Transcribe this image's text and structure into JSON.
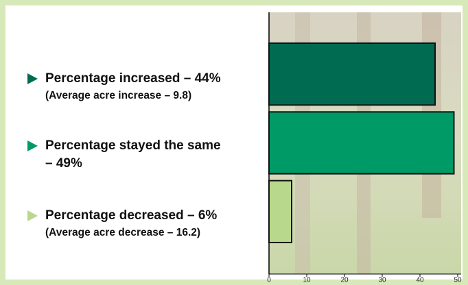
{
  "chart_data": {
    "type": "barh",
    "categories": [
      "Percentage increased – 44%",
      "Percentage stayed the same – 49%",
      "Percentage decreased – 6%"
    ],
    "annotations": [
      "(Average acre increase – 9.8)",
      "(Average acre decrease – 16.2)"
    ],
    "values": [
      44,
      49,
      6
    ],
    "colors": [
      "#006b50",
      "#009a66",
      "#b8d98c"
    ],
    "xlim": [
      0,
      50
    ],
    "xticks": [
      0,
      10,
      20,
      30,
      40,
      50
    ]
  }
}
